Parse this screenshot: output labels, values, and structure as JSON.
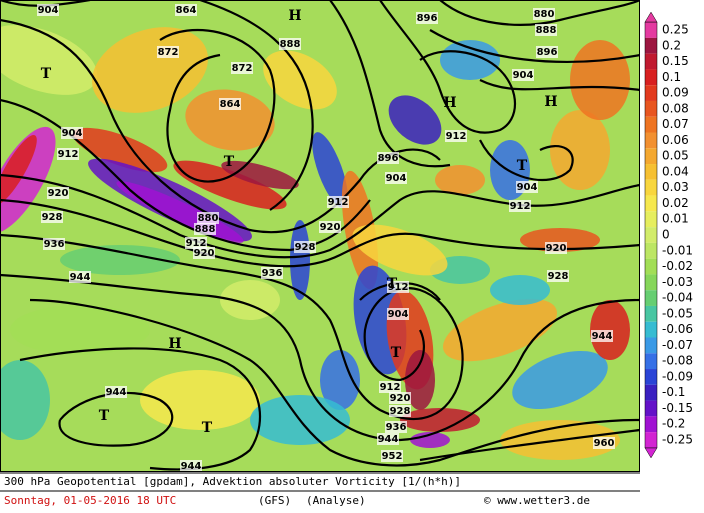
{
  "colorbar": {
    "ticks": [
      0.25,
      0.2,
      0.15,
      0.1,
      0.09,
      0.08,
      0.07,
      0.06,
      0.05,
      0.04,
      0.03,
      0.02,
      0.01,
      0,
      -0.01,
      -0.02,
      -0.03,
      -0.04,
      -0.05,
      -0.06,
      -0.07,
      -0.08,
      -0.09,
      -0.1,
      -0.15,
      -0.2,
      -0.25
    ],
    "colors": [
      "#e43aa0",
      "#9c1640",
      "#c01a30",
      "#d82020",
      "#e23a1e",
      "#e85620",
      "#ee7422",
      "#f29030",
      "#f4a830",
      "#f6c032",
      "#f8d63e",
      "#f6e84e",
      "#e6ee5e",
      "#d2ec6a",
      "#bce664",
      "#a2de56",
      "#86d65a",
      "#66ce72",
      "#48c6a2",
      "#36bcd2",
      "#3a9ae6",
      "#3670e6",
      "#2a44d6",
      "#3a20c0",
      "#6412c8",
      "#a012d2",
      "#d224d2"
    ]
  },
  "map": {
    "contour_labels": [
      904,
      864,
      880,
      896,
      888,
      872,
      888,
      896,
      872,
      904,
      864,
      904,
      912,
      912,
      896,
      904,
      904,
      920,
      912,
      912,
      880,
      888,
      920,
      928,
      912,
      920,
      936,
      928,
      920,
      944,
      936,
      928,
      912,
      904,
      944,
      912,
      920,
      944,
      928,
      936,
      944,
      960,
      952,
      944
    ],
    "system_labels": [
      "H",
      "T",
      "H",
      "H",
      "T",
      "T",
      "T",
      "H",
      "T",
      "T",
      "T"
    ]
  },
  "footer": {
    "title": "300 hPa Geopotential [gpdam], Advektion absoluter Vorticity [1/(h*h)]",
    "date": "Sonntag, 01-05-2016  18 UTC",
    "model": "(GFS)",
    "run": "(Analyse)",
    "credit": "© www.wetter3.de"
  }
}
